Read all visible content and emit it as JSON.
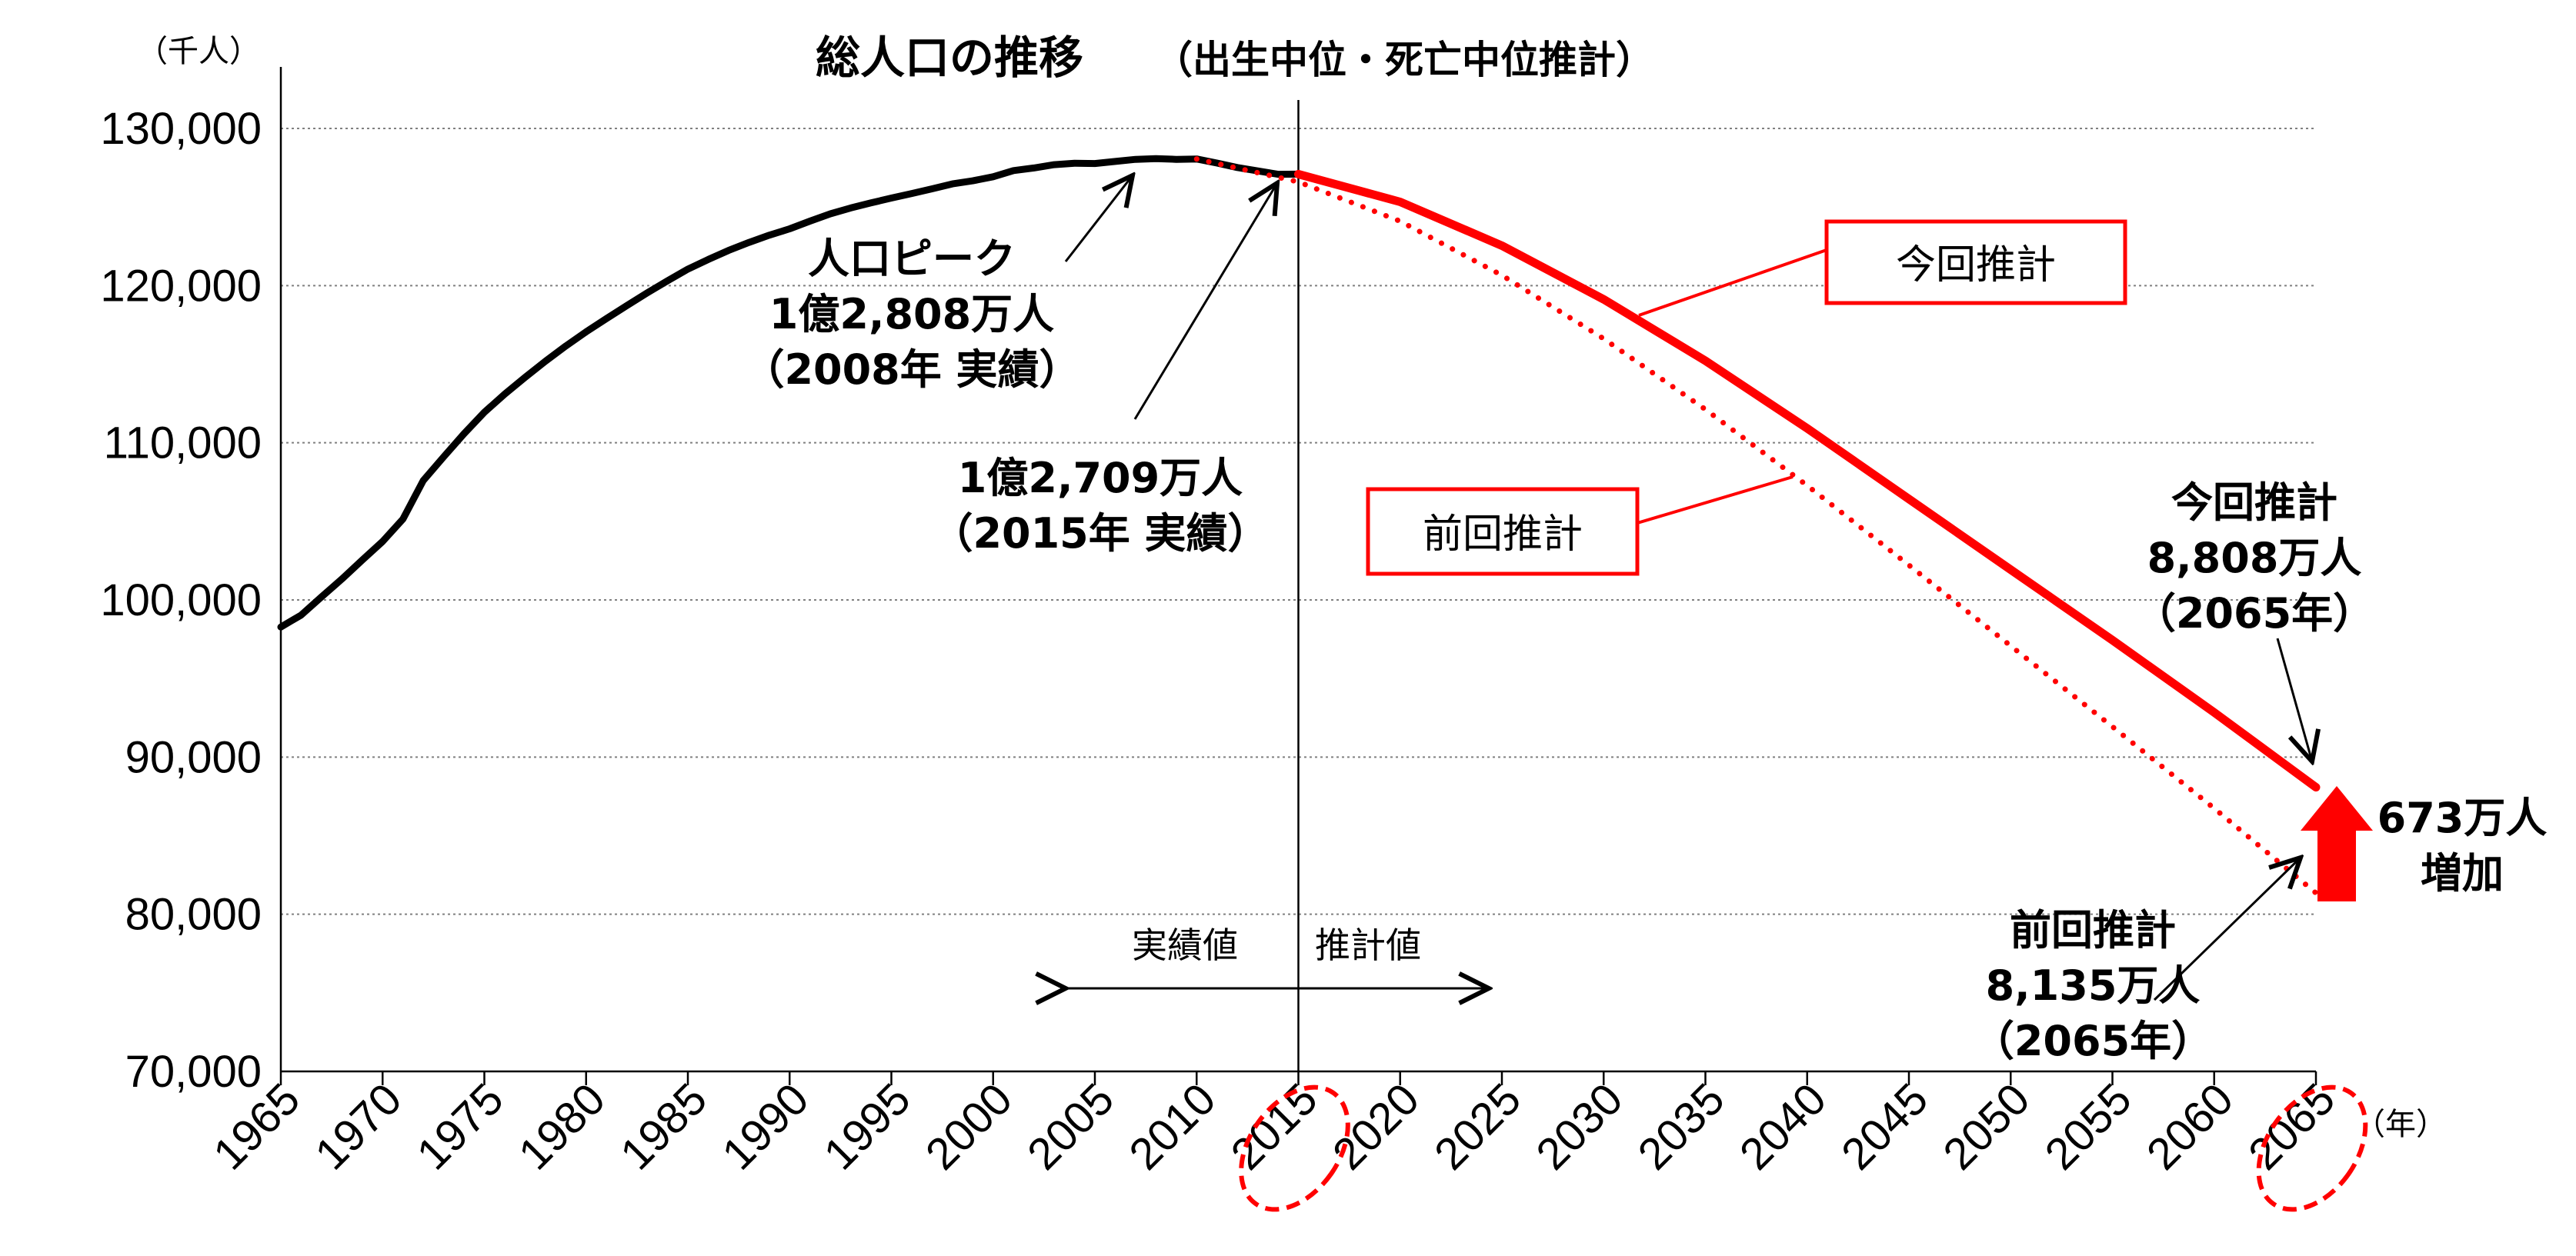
{
  "chart_data": {
    "type": "line",
    "title": "総人口の推移",
    "subtitle": "（出生中位・死亡中位推計）",
    "y_unit": "（千人）",
    "x_unit": "（年）",
    "ylim": [
      70000,
      130000
    ],
    "xlim": [
      1965,
      2065
    ],
    "y_ticks": [
      "130,000",
      "120,000",
      "110,000",
      "100,000",
      "90,000",
      "80,000",
      "70,000"
    ],
    "y_tick_values": [
      130000,
      120000,
      110000,
      100000,
      90000,
      80000,
      70000
    ],
    "x_ticks": [
      "1965",
      "1970",
      "1975",
      "1980",
      "1985",
      "1990",
      "1995",
      "2000",
      "2005",
      "2010",
      "2015",
      "2020",
      "2025",
      "2030",
      "2035",
      "2040",
      "2045",
      "2050",
      "2055",
      "2060",
      "2065"
    ],
    "highlighted_years": [
      "2015",
      "2065"
    ],
    "grid": "horizontal dotted",
    "colors": {
      "actual": "#000000",
      "current": "#ff0000",
      "previous": "#ff0000",
      "accent": "#ff0000"
    },
    "series": [
      {
        "key": "actual",
        "style": "solid",
        "x": [
          1965,
          1966,
          1967,
          1968,
          1969,
          1970,
          1971,
          1972,
          1973,
          1974,
          1975,
          1976,
          1977,
          1978,
          1979,
          1980,
          1981,
          1982,
          1983,
          1984,
          1985,
          1986,
          1987,
          1988,
          1989,
          1990,
          1991,
          1992,
          1993,
          1994,
          1995,
          1996,
          1997,
          1998,
          1999,
          2000,
          2001,
          2002,
          2003,
          2004,
          2005,
          2006,
          2007,
          2008,
          2009,
          2010,
          2011,
          2012,
          2013,
          2014,
          2015
        ],
        "values": [
          98275,
          99036,
          100196,
          101331,
          102536,
          103720,
          105145,
          107595,
          109104,
          110573,
          111940,
          113094,
          114165,
          115190,
          116155,
          117060,
          117902,
          118728,
          119536,
          120305,
          121049,
          121660,
          122239,
          122745,
          123205,
          123611,
          124101,
          124567,
          124938,
          125265,
          125570,
          125859,
          126157,
          126472,
          126667,
          126926,
          127316,
          127486,
          127694,
          127787,
          127768,
          127901,
          128033,
          128084,
          128032,
          128057,
          127799,
          127515,
          127298,
          127083,
          127095
        ]
      },
      {
        "key": "current",
        "label": "今回推計",
        "style": "solid",
        "x": [
          2015,
          2020,
          2025,
          2030,
          2035,
          2040,
          2045,
          2050,
          2055,
          2060,
          2065
        ],
        "values": [
          127095,
          125325,
          122544,
          119125,
          115216,
          110919,
          106421,
          101923,
          97441,
          92840,
          88077
        ]
      },
      {
        "key": "previous",
        "label": "前回推計",
        "style": "dotted",
        "x": [
          2010,
          2015,
          2020,
          2025,
          2030,
          2035,
          2040,
          2045,
          2050,
          2055,
          2060,
          2065
        ],
        "values": [
          128057,
          126597,
          124100,
          120659,
          116618,
          112124,
          107276,
          102210,
          97076,
          91933,
          86737,
          81355
        ]
      }
    ],
    "annotations": {
      "peak": [
        "人口ピーク",
        "1億2,808万人",
        "（2008年  実績）"
      ],
      "y2015": [
        "1億2,709万人",
        "（2015年  実績）"
      ],
      "current_box": "今回推計",
      "previous_box": "前回推計",
      "current_end": [
        "今回推計",
        "8,808万人",
        "（2065年）"
      ],
      "previous_end": [
        "前回推計",
        "8,135万人",
        "（2065年）"
      ],
      "increase": [
        "673万人",
        "増加"
      ],
      "actual_side": "実績値",
      "projected_side": "推計値"
    }
  }
}
